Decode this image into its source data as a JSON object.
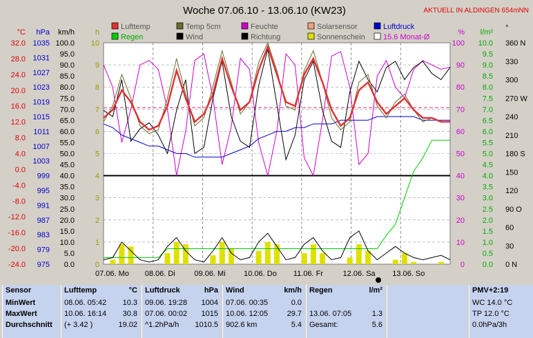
{
  "chart_data": {
    "type": "line",
    "title": "Woche 07.06.10 - 13.06.10 (KW23)",
    "banner": "AKTUELL IN ALDINGEN 654mNN",
    "axes": {
      "temp": {
        "label": "°C",
        "ticks": [
          "32.0",
          "28.0",
          "24.0",
          "20.0",
          "16.0",
          "12.0",
          "8.0",
          "4.0",
          "0.0",
          "-4.0",
          "-8.0",
          "-12.0",
          "-16.0",
          "-20.0",
          "-24.0"
        ],
        "range": [
          -24,
          32
        ],
        "color": "#e00000"
      },
      "pressure": {
        "label": "hPa",
        "ticks": [
          "1035",
          "1031",
          "1027",
          "1023",
          "1019",
          "1015",
          "1011",
          "1007",
          "1003",
          "999",
          "995",
          "991",
          "987",
          "983",
          "979",
          "975"
        ],
        "range": [
          975,
          1035
        ],
        "color": "#0000cc"
      },
      "wind": {
        "label": "km/h",
        "ticks": [
          "100.0",
          "95.0",
          "90.0",
          "85.0",
          "80.0",
          "75.0",
          "70.0",
          "65.0",
          "60.0",
          "55.0",
          "50.0",
          "45.0",
          "40.0",
          "35.0",
          "30.0",
          "25.0",
          "20.0",
          "15.0",
          "10.0",
          "5.0",
          "0.0"
        ],
        "range": [
          0,
          100
        ],
        "color": "#000000"
      },
      "sun": {
        "label": "h",
        "ticks": [
          "10",
          "9",
          "8",
          "7",
          "6",
          "5",
          "4",
          "3",
          "2",
          "1",
          "0"
        ],
        "range": [
          0,
          10
        ],
        "color": "#999900"
      },
      "humidity": {
        "label": "%",
        "ticks": [
          "100",
          "90",
          "80",
          "70",
          "60",
          "50",
          "40",
          "30",
          "20",
          "10",
          "0"
        ],
        "range": [
          0,
          100
        ],
        "color": "#cc00cc"
      },
      "rain": {
        "label": "l/m²",
        "ticks": [
          "10.0",
          "9.5",
          "9.0",
          "8.5",
          "8.0",
          "7.5",
          "7.0",
          "6.5",
          "6.0",
          "5.5",
          "5.0",
          "4.5",
          "4.0",
          "3.5",
          "3.0",
          "2.5",
          "2.0",
          "1.5",
          "1.0",
          "0.5",
          "0.0"
        ],
        "range": [
          0,
          10
        ],
        "color": "#00aa00"
      },
      "direction": {
        "label": "°",
        "ticks": [
          "360 N",
          "330",
          "300",
          "270 W",
          "240",
          "210",
          "180 S",
          "150",
          "120",
          "90 O",
          "60",
          "30",
          "0  N"
        ],
        "range": [
          0,
          360
        ],
        "color": "#000000"
      }
    },
    "x_labels": [
      "07.06. Mo",
      "08.06. Di",
      "09.06. Mi",
      "10.06. Do",
      "11.06. Fr",
      "12.06. Sa",
      "13.06. So"
    ],
    "legend": [
      {
        "name": "Lufttemp",
        "color": "#e03030"
      },
      {
        "name": "Temp 5cm",
        "color": "#6b6b2b"
      },
      {
        "name": "Feuchte",
        "color": "#cc00cc"
      },
      {
        "name": "Solarsensor",
        "color": "#f0a080"
      },
      {
        "name": "Luftdruck",
        "color": "#0000cc"
      },
      {
        "name": "Regen",
        "color": "#00cc00"
      },
      {
        "name": "Wind",
        "color": "#000000"
      },
      {
        "name": "Richtung",
        "color": "#000000"
      },
      {
        "name": "Sonnenschein",
        "color": "#e0e000"
      },
      {
        "name": "15.6 Monat-Ø",
        "color": "#ffffff"
      }
    ],
    "monthly_avg_temp": 15.6,
    "series": [
      {
        "name": "Lufttemp",
        "axis": "temp",
        "values": [
          13,
          15,
          20,
          17,
          12,
          10,
          11,
          16,
          25,
          18,
          12,
          14,
          19,
          28,
          21,
          15,
          17,
          25,
          31,
          24,
          17,
          16,
          24,
          28,
          22,
          15,
          11,
          13,
          20,
          22,
          17,
          14,
          16,
          18,
          15,
          13,
          13,
          12,
          12
        ]
      },
      {
        "name": "Temp 5cm",
        "axis": "temp",
        "values": [
          12,
          16,
          24,
          18,
          11,
          9,
          10,
          18,
          28,
          19,
          11,
          13,
          21,
          30,
          22,
          14,
          17,
          27,
          32,
          25,
          16,
          15,
          25,
          30,
          22,
          13,
          10,
          12,
          22,
          24,
          16,
          13,
          17,
          19,
          15,
          12,
          13,
          12,
          12
        ]
      },
      {
        "name": "Feuchte",
        "axis": "humidity",
        "values": [
          90,
          80,
          55,
          70,
          90,
          92,
          88,
          70,
          40,
          60,
          92,
          95,
          75,
          45,
          62,
          93,
          88,
          55,
          40,
          60,
          95,
          90,
          48,
          40,
          65,
          94,
          96,
          80,
          45,
          50,
          85,
          92,
          80,
          75,
          88,
          92,
          90,
          88,
          89
        ]
      },
      {
        "name": "Luftdruck",
        "axis": "pressure",
        "values": [
          1013,
          1012,
          1010,
          1009,
          1008,
          1007,
          1007,
          1006,
          1005,
          1005,
          1004,
          1004,
          1004,
          1004,
          1005,
          1006,
          1007,
          1009,
          1010,
          1011,
          1011,
          1012,
          1012,
          1013,
          1013,
          1013,
          1014,
          1014,
          1014,
          1014,
          1015,
          1015,
          1015,
          1015,
          1015,
          1014,
          1014,
          1014,
          1014
        ]
      },
      {
        "name": "Regen",
        "axis": "rain",
        "values": [
          0.3,
          0.3,
          0.3,
          0.3,
          0.3,
          0.3,
          0.3,
          0.7,
          0.7,
          0.7,
          0.7,
          0.7,
          0.7,
          0.7,
          0.7,
          0.7,
          0.7,
          0.7,
          0.7,
          0.7,
          0.7,
          0.7,
          0.7,
          0.7,
          0.7,
          0.7,
          0.7,
          0.7,
          0.7,
          0.7,
          0.7,
          1.3,
          1.8,
          3.0,
          4.2,
          4.8,
          5.6,
          5.6,
          5.6
        ]
      },
      {
        "name": "Wind",
        "axis": "wind",
        "values": [
          2,
          3,
          10,
          6,
          2,
          1,
          2,
          8,
          12,
          6,
          2,
          1,
          6,
          12,
          5,
          2,
          3,
          10,
          14,
          8,
          2,
          3,
          9,
          12,
          6,
          2,
          3,
          12,
          15,
          6,
          2,
          5,
          8,
          5,
          3,
          2,
          3,
          4,
          2
        ]
      },
      {
        "name": "Richtung",
        "axis": "direction",
        "values": [
          250,
          240,
          300,
          200,
          220,
          230,
          210,
          180,
          250,
          300,
          180,
          190,
          270,
          330,
          240,
          200,
          190,
          290,
          350,
          260,
          170,
          210,
          300,
          330,
          250,
          200,
          190,
          280,
          330,
          300,
          280,
          320,
          330,
          300,
          320,
          330,
          310,
          300,
          320
        ]
      },
      {
        "name": "Sonnenschein",
        "axis": "sun",
        "values": [
          0,
          0.2,
          0.9,
          0.8,
          0,
          0,
          0,
          0.5,
          1.0,
          0.9,
          0,
          0,
          0.4,
          1.0,
          0.7,
          0,
          0,
          0.6,
          1.0,
          0.9,
          0,
          0,
          0.5,
          0.9,
          0.5,
          0,
          0,
          0.3,
          0.9,
          0.6,
          0,
          0,
          0.2,
          0.5,
          0.1,
          0,
          0,
          0.1,
          0
        ]
      }
    ],
    "hline_wind_value": 40
  },
  "stats": {
    "sensor": {
      "title": "Sensor",
      "rows": [
        "MinWert",
        "MaxWert",
        "Durchschnitt"
      ]
    },
    "lufttemp": {
      "title": "Lufttemp",
      "unit": "°C",
      "rows": [
        [
          "08.06.  05:42",
          "10.3"
        ],
        [
          "10.06.  16:14",
          "30.8"
        ],
        [
          "(+ 3.42 )",
          "19.02"
        ]
      ]
    },
    "luftdruck": {
      "title": "Luftdruck",
      "unit": "hPa",
      "rows": [
        [
          "09.06.  19:28",
          "1004"
        ],
        [
          "07.06.  00:02",
          "1015"
        ],
        [
          "^1.2hPa/h",
          "1010.5"
        ]
      ]
    },
    "wind": {
      "title": "Wind",
      "unit": "km/h",
      "rows": [
        [
          "07.06.  00:35",
          "0.0"
        ],
        [
          "10.06.  12:05",
          "29.7"
        ],
        [
          "902.6 km",
          "5.4"
        ]
      ]
    },
    "regen": {
      "title": "Regen",
      "unit": "l/m²",
      "rows": [
        [
          "13.06.  07:05",
          "1.3"
        ],
        [
          "Gesamt:",
          "5.6"
        ]
      ]
    },
    "pmv": {
      "title": "PMV+2:19",
      "rows": [
        "WC 14.0 °C",
        "TP 12.0 °C",
        "0.0hPa/3h"
      ]
    }
  }
}
